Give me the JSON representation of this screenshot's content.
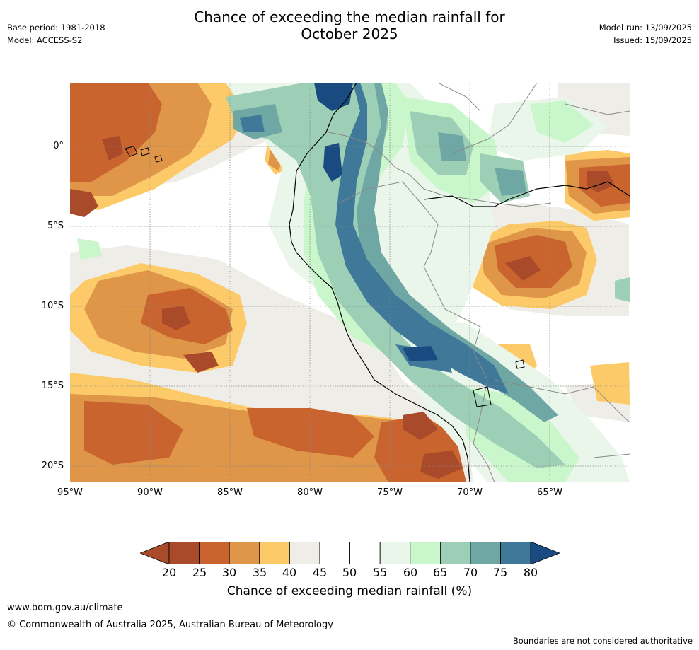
{
  "title_line1": "Chance of exceeding the median rainfall for",
  "title_line2": "October 2025",
  "meta_left": [
    "Base period: 1981-2018",
    "Model: ACCESS-S2"
  ],
  "meta_right": [
    "Model run: 13/09/2025",
    "Issued: 15/09/2025"
  ],
  "map": {
    "lon_range": [
      -95,
      -60
    ],
    "lat_range": [
      -21,
      4
    ],
    "lat_ticks": [
      {
        "value": 0,
        "label": "0°"
      },
      {
        "value": -5,
        "label": "5°S"
      },
      {
        "value": -10,
        "label": "10°S"
      },
      {
        "value": -15,
        "label": "15°S"
      },
      {
        "value": -20,
        "label": "20°S"
      }
    ],
    "lon_ticks": [
      {
        "value": -95,
        "label": "95°W"
      },
      {
        "value": -90,
        "label": "90°W"
      },
      {
        "value": -85,
        "label": "85°W"
      },
      {
        "value": -80,
        "label": "80°W"
      },
      {
        "value": -75,
        "label": "75°W"
      },
      {
        "value": -70,
        "label": "70°W"
      },
      {
        "value": -65,
        "label": "65°W"
      }
    ]
  },
  "colorbar": {
    "ticks": [
      "20",
      "25",
      "30",
      "35",
      "40",
      "45",
      "50",
      "55",
      "60",
      "65",
      "70",
      "75",
      "80"
    ],
    "colors": [
      "#a94b2a",
      "#c9642e",
      "#df9648",
      "#fdca6a",
      "#efede8",
      "#ffffff",
      "#ffffff",
      "#eaf6ea",
      "#caf6cc",
      "#9dcfb6",
      "#6fa7a4",
      "#3f7898",
      "#1a4b80"
    ],
    "label": "Chance of exceeding median rainfall (%)"
  },
  "footer": {
    "url": "www.bom.gov.au/climate",
    "copyright": "© Commonwealth of Australia 2025, Australian Bureau of Meteorology",
    "disclaimer": "Boundaries are not considered authoritative"
  }
}
